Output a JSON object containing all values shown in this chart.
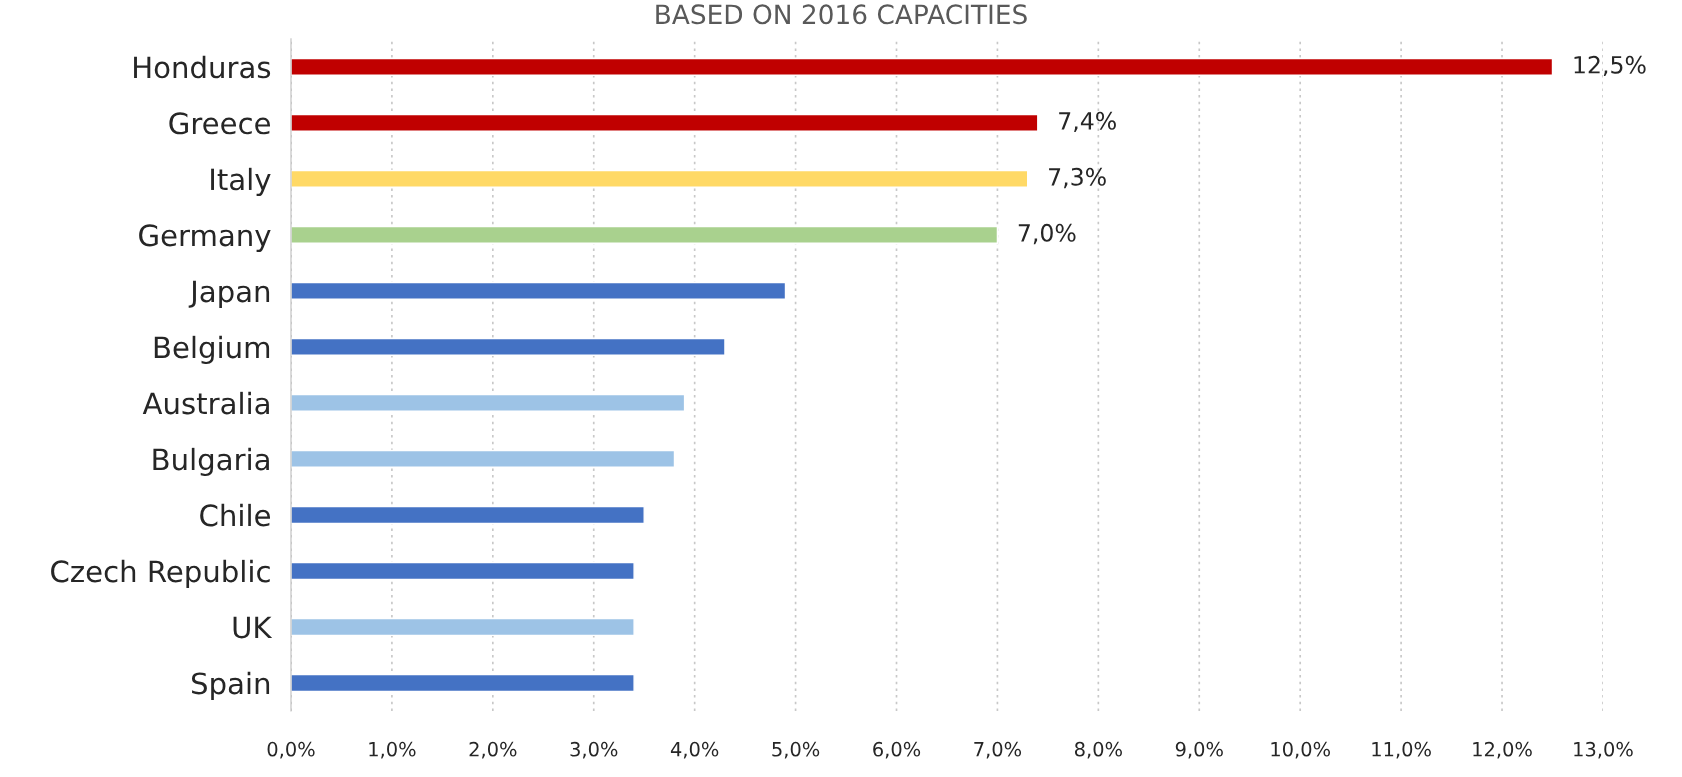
{
  "chart_data": {
    "type": "bar",
    "orientation": "horizontal",
    "title": "BASED ON 2016 CAPACITIES",
    "categories": [
      "Honduras",
      "Greece",
      "Italy",
      "Germany",
      "Japan",
      "Belgium",
      "Australia",
      "Bulgaria",
      "Chile",
      "Czech Republic",
      "UK",
      "Spain"
    ],
    "values": [
      12.5,
      7.4,
      7.3,
      7.0,
      4.9,
      4.3,
      3.9,
      3.8,
      3.5,
      3.4,
      3.4,
      3.4
    ],
    "value_labels": [
      "12,5%",
      "7,4%",
      "7,3%",
      "7,0%",
      null,
      null,
      null,
      null,
      null,
      null,
      null,
      null
    ],
    "colors": [
      "#c00000",
      "#c00000",
      "#ffd966",
      "#a9d18e",
      "#4472c4",
      "#4472c4",
      "#9dc3e6",
      "#9dc3e6",
      "#4472c4",
      "#4472c4",
      "#9dc3e6",
      "#4472c4"
    ],
    "xlim": [
      0,
      13
    ],
    "xticks": [
      {
        "value": 0,
        "label": "0,0%"
      },
      {
        "value": 1,
        "label": "1,0%"
      },
      {
        "value": 2,
        "label": "2,0%"
      },
      {
        "value": 3,
        "label": "3,0%"
      },
      {
        "value": 4,
        "label": "4,0%"
      },
      {
        "value": 5,
        "label": "5,0%"
      },
      {
        "value": 6,
        "label": "6,0%"
      },
      {
        "value": 7,
        "label": "7,0%"
      },
      {
        "value": 8,
        "label": "8,0%"
      },
      {
        "value": 9,
        "label": "9,0%"
      },
      {
        "value": 10,
        "label": "10,0%"
      },
      {
        "value": 11,
        "label": "11,0%"
      },
      {
        "value": 12,
        "label": "12,0%"
      },
      {
        "value": 13,
        "label": "13,0%"
      }
    ],
    "grid": "x"
  }
}
